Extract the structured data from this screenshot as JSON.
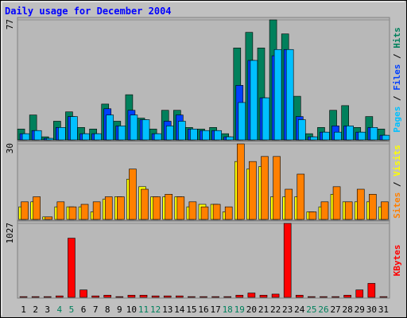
{
  "chart_data": [
    {
      "type": "bar",
      "title": "Daily usage for December 2004",
      "legend_separator": " / ",
      "ylim": [
        0,
        77
      ],
      "yticks": [
        77
      ],
      "series": [
        {
          "name": "Hits",
          "color": "#00805c",
          "values": [
            7,
            16,
            2,
            12,
            18,
            8,
            7,
            23,
            12,
            29,
            14,
            7,
            19,
            19,
            8,
            7,
            8,
            4,
            59,
            69,
            59,
            77,
            68,
            28,
            4,
            8,
            19,
            22,
            8,
            15,
            7
          ]
        },
        {
          "name": "Files",
          "color": "#0040ff",
          "values": [
            4,
            6,
            1,
            8,
            15,
            4,
            4,
            20,
            9,
            19,
            13,
            4,
            12,
            16,
            7,
            6,
            6,
            2,
            35,
            51,
            27,
            54,
            58,
            15,
            2,
            5,
            9,
            9,
            5,
            8,
            3
          ]
        },
        {
          "name": "Pages",
          "color": "#00c0ff",
          "values": [
            4,
            6,
            1,
            8,
            15,
            4,
            4,
            16,
            9,
            16,
            13,
            4,
            9,
            12,
            7,
            6,
            6,
            2,
            24,
            51,
            27,
            58,
            58,
            13,
            2,
            5,
            5,
            9,
            5,
            8,
            3
          ]
        }
      ]
    },
    {
      "type": "bar",
      "legend_separator": " / ",
      "ylim": [
        0,
        30
      ],
      "yticks": [
        30
      ],
      "series": [
        {
          "name": "Visits",
          "color": "#ffff00",
          "values": [
            5,
            7,
            1,
            5,
            5,
            5,
            3,
            8,
            9,
            16,
            13,
            9,
            9,
            9,
            5,
            6,
            6,
            3,
            23,
            20,
            21,
            9,
            9,
            9,
            3,
            5,
            10,
            7,
            7,
            7,
            5
          ]
        },
        {
          "name": "Sites",
          "color": "#ff8000",
          "values": [
            7,
            9,
            1,
            7,
            5,
            6,
            7,
            9,
            9,
            20,
            12,
            9,
            10,
            9,
            7,
            5,
            6,
            5,
            30,
            23,
            25,
            25,
            12,
            18,
            3,
            7,
            13,
            7,
            12,
            10,
            7
          ]
        }
      ]
    },
    {
      "type": "bar",
      "ylim": [
        0,
        1027
      ],
      "yticks": [
        1027
      ],
      "categories": [
        "1",
        "2",
        "3",
        "4",
        "5",
        "6",
        "7",
        "8",
        "9",
        "10",
        "11",
        "12",
        "13",
        "14",
        "15",
        "16",
        "17",
        "18",
        "19",
        "20",
        "21",
        "22",
        "23",
        "24",
        "25",
        "26",
        "27",
        "28",
        "29",
        "30",
        "31"
      ],
      "category_colors": [
        "#000000",
        "#000000",
        "#000000",
        "#00805c",
        "#00805c",
        "#000000",
        "#000000",
        "#000000",
        "#000000",
        "#000000",
        "#00805c",
        "#00805c",
        "#000000",
        "#000000",
        "#000000",
        "#000000",
        "#000000",
        "#00805c",
        "#00805c",
        "#000000",
        "#000000",
        "#000000",
        "#000000",
        "#000000",
        "#00805c",
        "#00805c",
        "#000000",
        "#000000",
        "#000000",
        "#000000",
        "#000000"
      ],
      "series": [
        {
          "name": "KBytes",
          "color": "#ff0000",
          "values": [
            10,
            10,
            10,
            20,
            822,
            103,
            20,
            30,
            10,
            30,
            30,
            20,
            20,
            20,
            10,
            10,
            10,
            10,
            30,
            60,
            30,
            45,
            1027,
            30,
            10,
            10,
            10,
            30,
            103,
            194,
            10
          ]
        }
      ]
    }
  ]
}
